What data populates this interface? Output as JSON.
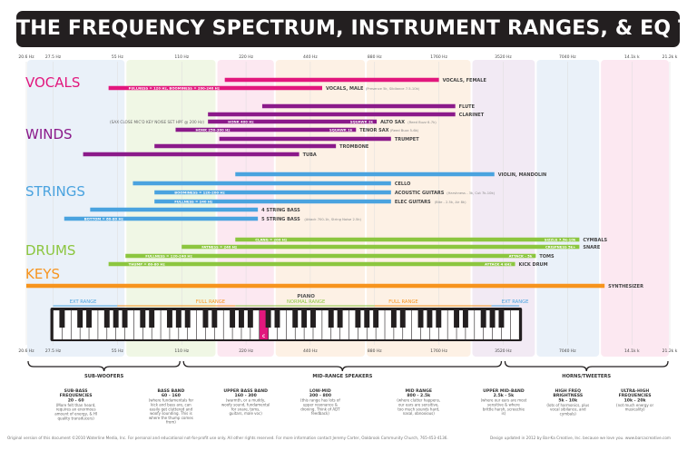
{
  "header": {
    "title": "THE FREQUENCY SPECTRUM, INSTRUMENT RANGES, & EQ TIPS"
  },
  "footer": {
    "left": "Original version of this document ©2010 Waterline Media, Inc. For personal and educational not-for-profit use only. All other rights reserved. For more information contact Jeremy Carter, Oakbrook Community Church, 765-453-4136.",
    "right": "Design updated in 2012 by Bar-Ka Creative, Inc. because we love you. www.barcacreative.com"
  },
  "colors": {
    "vocals": "#e2177d",
    "winds": "#8b1a8a",
    "strings": "#4aa3df",
    "drums": "#8cc63f",
    "keys": "#f7941d",
    "band_blue": "#e6eef8",
    "band_green": "#edf6e1",
    "band_pink": "#fbe4ee",
    "band_orange": "#fdefe0",
    "band_purple": "#f0e6f2",
    "keyboard_highlight": "#e2177d",
    "text_dark": "#555555"
  },
  "chart_data": {
    "type": "bar",
    "x_axis": {
      "scale": "log",
      "range_hz": [
        20.6,
        21200
      ],
      "ticks": [
        {
          "hz": 20.6,
          "label": "20.6 Hz"
        },
        {
          "hz": 27.5,
          "label": "27.5 Hz"
        },
        {
          "hz": 55,
          "label": "55 Hz"
        },
        {
          "hz": 110,
          "label": "110 Hz"
        },
        {
          "hz": 220,
          "label": "220 Hz"
        },
        {
          "hz": 440,
          "label": "440 Hz"
        },
        {
          "hz": 880,
          "label": "880 Hz"
        },
        {
          "hz": 1760,
          "label": "1760 Hz"
        },
        {
          "hz": 3520,
          "label": "3520 Hz"
        },
        {
          "hz": 7040,
          "label": "7040 Hz"
        },
        {
          "hz": 14100,
          "label": "14.1k k"
        },
        {
          "hz": 21200,
          "label": "21.2k k"
        }
      ]
    },
    "categories": [
      {
        "name": "VOCALS",
        "color": "#e2177d"
      },
      {
        "name": "WINDS",
        "color": "#8b1a8a"
      },
      {
        "name": "STRINGS",
        "color": "#4aa3df"
      },
      {
        "name": "DRUMS",
        "color": "#8cc63f"
      },
      {
        "name": "KEYS",
        "color": "#f7941d"
      }
    ],
    "bars": [
      {
        "group": "vocals",
        "label": "VOCALS, FEMALE",
        "note": "",
        "start_hz": 175,
        "end_hz": 1760,
        "inside": ""
      },
      {
        "group": "vocals",
        "label": "VOCALS, MALE",
        "note": "(Presence 5k, Sibilance 7.5-10k)",
        "start_hz": 50,
        "end_hz": 500,
        "inside": "FULLNESS = 120 Hz, BOOMINESS = 200-240 Hz"
      },
      {
        "group": "winds",
        "label": "FLUTE",
        "note": "",
        "start_hz": 262,
        "end_hz": 2100,
        "inside": ""
      },
      {
        "group": "winds",
        "label": "CLARINET",
        "note": "",
        "start_hz": 146,
        "end_hz": 2100,
        "inside": ""
      },
      {
        "group": "winds",
        "label": "ALTO SAX",
        "note": "(Reed Buzz 6-7k)",
        "start_hz": 146,
        "end_hz": 900,
        "inside": "HONK 400 Hz",
        "inside2": "SQUAWK 2k"
      },
      {
        "group": "winds",
        "label": "TENOR SAX",
        "note": "(Reed Buzz 5-6k)",
        "start_hz": 103,
        "end_hz": 720,
        "inside": "HONK 250-300 Hz",
        "inside2": "SQUAWK 1k"
      },
      {
        "group": "winds",
        "label": "TRUMPET",
        "note": "",
        "start_hz": 165,
        "end_hz": 1050,
        "inside": ""
      },
      {
        "group": "winds",
        "label": "TROMBONE",
        "note": "",
        "start_hz": 82,
        "end_hz": 580,
        "inside": ""
      },
      {
        "group": "winds",
        "label": "TUBA",
        "note": "",
        "start_hz": 38,
        "end_hz": 390,
        "inside": ""
      },
      {
        "group": "strings",
        "label": "VIOLIN, MANDOLIN",
        "note": "",
        "start_hz": 196,
        "end_hz": 3200,
        "inside": ""
      },
      {
        "group": "strings",
        "label": "CELLO",
        "note": "",
        "start_hz": 65,
        "end_hz": 1050,
        "inside": ""
      },
      {
        "group": "strings",
        "label": "ACOUSTIC GUITARS",
        "note": "(Harshness - 3k, Cut 7k-10k)",
        "start_hz": 82,
        "end_hz": 1050,
        "inside": "BOOMINESS = 120-200 Hz"
      },
      {
        "group": "strings",
        "label": "ELEC GUITARS",
        "note": "(Bite - 2.5k, Air 8k)",
        "start_hz": 82,
        "end_hz": 1050,
        "inside": "FULLNESS = 240 Hz"
      },
      {
        "group": "strings",
        "label": "4 STRING BASS",
        "note": "",
        "start_hz": 41,
        "end_hz": 250,
        "inside": ""
      },
      {
        "group": "strings",
        "label": "5 STRING BASS",
        "note": "(Attack 700-1k, String Noise 2.5k)",
        "start_hz": 31,
        "end_hz": 250,
        "inside": "BOTTOM = 60-80 Hz"
      },
      {
        "group": "drums",
        "label": "CYMBALS",
        "note": "",
        "start_hz": 196,
        "end_hz": 8000,
        "inside": "CLANG = 200 Hz",
        "inside2": "SIZZLE 7.5k-10k"
      },
      {
        "group": "drums",
        "label": "SNARE",
        "note": "",
        "start_hz": 110,
        "end_hz": 8000,
        "inside": "FATNESS = 240 Hz",
        "inside2": "CRISPNESS 5k+"
      },
      {
        "group": "drums",
        "label": "TOMS",
        "note": "",
        "start_hz": 60,
        "end_hz": 5000,
        "inside": "FULLNESS = 120-240 Hz",
        "inside2": "ATTACK - 5k"
      },
      {
        "group": "drums",
        "label": "KICK DRUM",
        "note": "",
        "start_hz": 50,
        "end_hz": 4000,
        "inside": "THUMP = 60-80 Hz",
        "inside2": "ATTACK 4 kHz"
      },
      {
        "group": "keys",
        "label": "SYNTHESIZER",
        "note": "",
        "start_hz": 20.6,
        "end_hz": 10500,
        "inside": ""
      }
    ],
    "annotations": [
      {
        "text": "(SAX CLOSE MIC'D KEY NOISE SET HPF @ 200 Hz)"
      }
    ],
    "piano": {
      "title": "PIANO",
      "range_labels": [
        "EXT RANGE",
        "FULL RANGE",
        "NORMAL RANGE",
        "FULL RANGE",
        "EXT RANGE"
      ],
      "middle_c": "C"
    },
    "speaker_groups": [
      {
        "label": "SUB-WOOFERS"
      },
      {
        "label": "MID-RANGE SPEAKERS"
      },
      {
        "label": "HORNS/TWEETERS"
      }
    ],
    "bands": [
      {
        "title": "SUB-BASS FREQUENCIES",
        "range": "20 - 60",
        "desc": "(More felt than heard, requires an enormous amount of energy, & HI quality transducers)",
        "color": "#e6eef8"
      },
      {
        "title": "BASS BAND",
        "range": "60 - 160",
        "desc": "(where fundamentals for kick and bass are, can easily get cluttered and woofy sounding. This is where the thump comes from)",
        "color": "#edf6e1"
      },
      {
        "title": "UPPER BASS BAND",
        "range": "160 - 300",
        "desc": "(warmth, or a muddy, woofy sound, fundamental for snare, toms, guitars, male voc)",
        "color": "#fbe4ee"
      },
      {
        "title": "LOW-MID",
        "range": "300 - 800",
        "desc": "(this range has lots of upper resonance & droning. Think of ADT feedback)",
        "color": "#fdefe0"
      },
      {
        "title": "MID RANGE",
        "range": "800 - 2.5k",
        "desc": "(where clutter happens, our ears are sensitive, too much sounds hard, nasal, obnoxious)",
        "color": "#fdefe0"
      },
      {
        "title": "UPPER MID-BAND",
        "range": "2.5k - 5k",
        "desc": "(where our ears are most sensitive & where brittle harsh, screechie is)",
        "color": "#f0e6f2"
      },
      {
        "title": "HIGH FREQ BRIGHTNESS",
        "range": "5k - 10k",
        "desc": "(lots of harmonics, plus vocal sibilance, and cymbals)",
        "color": "#e6eef8"
      },
      {
        "title": "ULTRA-HIGH FREQUENCIES",
        "range": "10k - 20k",
        "desc": "(not much energy or musicality)",
        "color": "#fbe4ee"
      }
    ]
  }
}
